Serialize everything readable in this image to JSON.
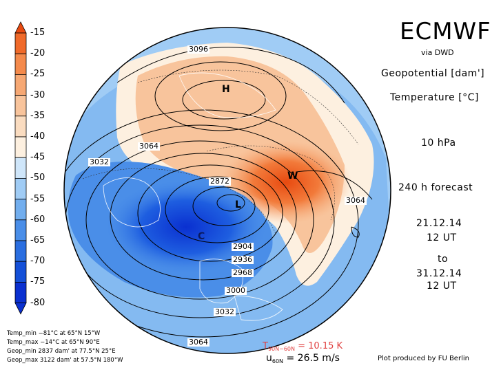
{
  "header": {
    "title": "ECMWF",
    "source": "via DWD",
    "variable_1": "Geopotential [dam']",
    "variable_2": "Temperature [°C]",
    "level": "10 hPa",
    "forecast": "240 h forecast",
    "init_date": "21.12.14",
    "init_time": "12 UT",
    "to_label": "to",
    "valid_date": "31.12.14",
    "valid_time": "12 UT"
  },
  "colorbar": {
    "labels": [
      "-15",
      "-20",
      "-25",
      "-30",
      "-35",
      "-40",
      "-45",
      "-50",
      "-55",
      "-60",
      "-65",
      "-70",
      "-75",
      "-80"
    ],
    "colors": [
      "#e84a10",
      "#f06a2a",
      "#f48a4c",
      "#f6a874",
      "#f8c49c",
      "#fadcc0",
      "#fdf0e0",
      "#cfe6fa",
      "#a0ccf5",
      "#72aeee",
      "#4a8ee8",
      "#2a6ee0",
      "#1450d8",
      "#0a30d0"
    ]
  },
  "map": {
    "contour_labels": [
      "3096",
      "3064",
      "3032",
      "2872",
      "2904",
      "2936",
      "2968",
      "3000",
      "3032",
      "3064",
      "3064"
    ],
    "high_marker": "H",
    "low_marker": "L",
    "warm_marker": "W",
    "cold_marker": "C"
  },
  "stats": {
    "temp_min": "Temp_min −81°C at 65°N 15°W",
    "temp_max": "Temp_max −14°C at 65°N 90°E",
    "geop_min": "Geop_min 2837 dam' at 77.5°N 25°E",
    "geop_max": "Geop_max 3122 dam' at 57.5°N 180°W"
  },
  "footer": {
    "t_diff_prefix": "T",
    "t_diff_sub": "90N−60N",
    "t_diff_value": " = 10.15 K",
    "u_prefix": "u",
    "u_sub": "60N",
    "u_value": " = 26.5 m/s",
    "credit": "Plot produced by FU Berlin"
  }
}
